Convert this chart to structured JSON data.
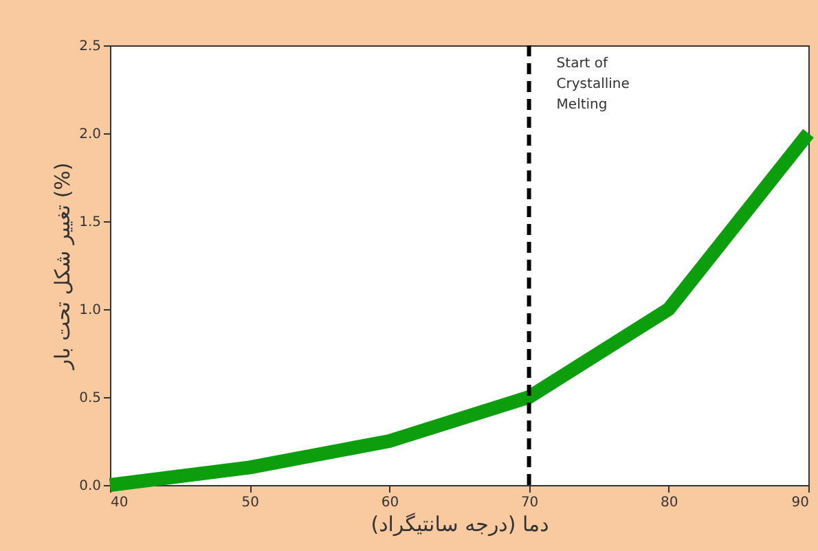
{
  "chart_data": {
    "type": "line",
    "xlabel": "دما (درجه سانتیگراد)",
    "ylabel": "تغییر شکل تحت بار (%)",
    "x": [
      40,
      50,
      60,
      70,
      80,
      90
    ],
    "series": [
      {
        "color": "#0c9e0c",
        "values": [
          0,
          0.1,
          0.25,
          0.5,
          1.0,
          2.0
        ]
      }
    ],
    "xlim": [
      40,
      90
    ],
    "xticks": [
      40,
      50,
      60,
      70,
      80,
      90
    ],
    "ylim": [
      0,
      2.5
    ],
    "yticks": [
      {
        "value": 0,
        "label": "0.0"
      },
      {
        "value": 0.5,
        "label": "0.5"
      },
      {
        "value": 1,
        "label": "1.0"
      },
      {
        "value": 1.5,
        "label": "1.5"
      },
      {
        "value": 2,
        "label": "2.0"
      },
      {
        "value": 2.5,
        "label": "2.5"
      }
    ],
    "ref_lines": [
      {
        "axis": "x",
        "value": 70,
        "label": "Start of\nCrystalline\nMelting",
        "color": "#000000",
        "line_style": "dashed"
      }
    ],
    "grid": false,
    "marker": "none",
    "line_style": "solid"
  }
}
